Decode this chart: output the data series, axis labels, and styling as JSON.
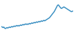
{
  "line_color": "#3a8fc2",
  "line_width": 1.1,
  "background_color": "#ffffff",
  "ylim": [
    88,
    145
  ],
  "xlim": [
    0,
    99
  ],
  "values": [
    96,
    95,
    94,
    95,
    93,
    92,
    93,
    94,
    93,
    94,
    95,
    94,
    95,
    96,
    95,
    96,
    97,
    96,
    97,
    98,
    97,
    98,
    97,
    98,
    99,
    98,
    99,
    100,
    99,
    100,
    101,
    100,
    101,
    100,
    101,
    102,
    101,
    102,
    103,
    102,
    103,
    104,
    103,
    104,
    105,
    104,
    105,
    106,
    105,
    106,
    107,
    106,
    107,
    108,
    107,
    108,
    109,
    110,
    111,
    112,
    113,
    115,
    117,
    119,
    121,
    123,
    125,
    128,
    131,
    134,
    137,
    138,
    136,
    134,
    132,
    131,
    132,
    133,
    134,
    133,
    132,
    131,
    130,
    129,
    128,
    127,
    126,
    125,
    125,
    126
  ]
}
